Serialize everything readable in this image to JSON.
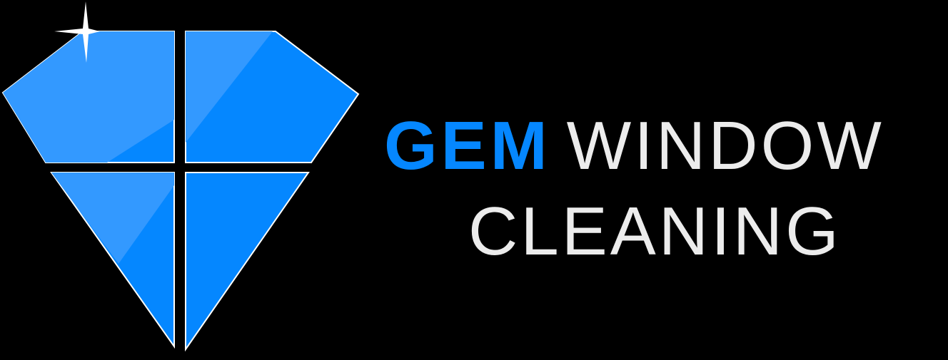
{
  "logo": {
    "name_primary": "GEM",
    "name_secondary": "WINDOW",
    "tagline": "CLEANING"
  },
  "colors": {
    "background": "#000000",
    "brand_blue": "#0587FF",
    "brand_blue_light": "#3399FF",
    "text_light": "#ECECEC",
    "outline": "#FFFFFF"
  },
  "icon": "diamond-window-icon"
}
